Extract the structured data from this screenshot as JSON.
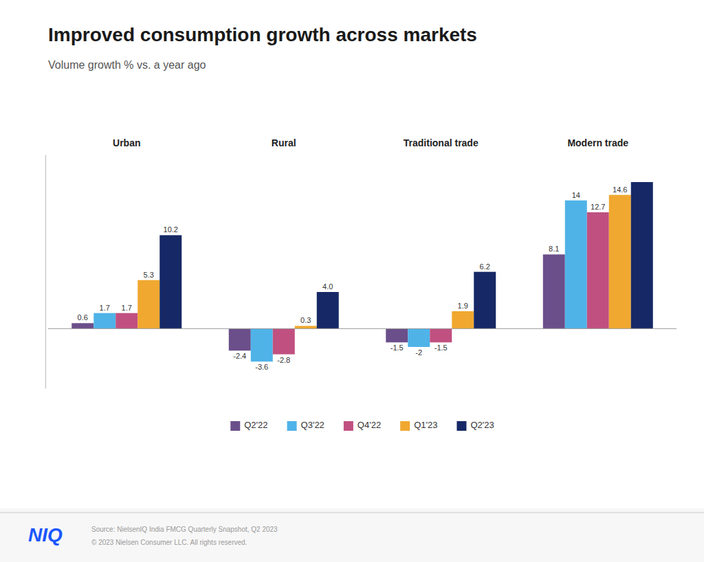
{
  "chart_data": {
    "type": "bar",
    "title": "Improved consumption growth across markets",
    "subtitle": "Volume growth % vs. a year ago",
    "categories": [
      "Urban",
      "Rural",
      "Traditional trade",
      "Modern trade"
    ],
    "series": [
      {
        "name": "Q2'22",
        "color": "#6b4f8a",
        "values": [
          0.6,
          -2.4,
          -1.5,
          8.1
        ]
      },
      {
        "name": "Q3'22",
        "color": "#4fb3e8",
        "values": [
          1.7,
          -3.6,
          -2.0,
          14.0
        ]
      },
      {
        "name": "Q4'22",
        "color": "#c05080",
        "values": [
          1.7,
          -2.8,
          -1.5,
          12.7
        ]
      },
      {
        "name": "Q1'23",
        "color": "#f0a830",
        "values": [
          5.3,
          0.3,
          1.9,
          14.6
        ]
      },
      {
        "name": "Q2'23",
        "color": "#162966",
        "values": [
          10.2,
          4.0,
          6.2,
          16.0
        ],
        "value_labels": [
          "10.2",
          "4.0",
          "6.2",
          null
        ]
      }
    ],
    "ylim": [
      -6.5,
      19
    ],
    "data_labels": true,
    "tick_labels": "x",
    "grid": false,
    "legend": "bottom",
    "annotations": [
      "NIQ",
      "Source: NielsenIQ India FMCG Quarterly Snapshot, Q2 2023",
      "© 2023 Nielsen Consumer LLC. All rights reserved."
    ]
  }
}
